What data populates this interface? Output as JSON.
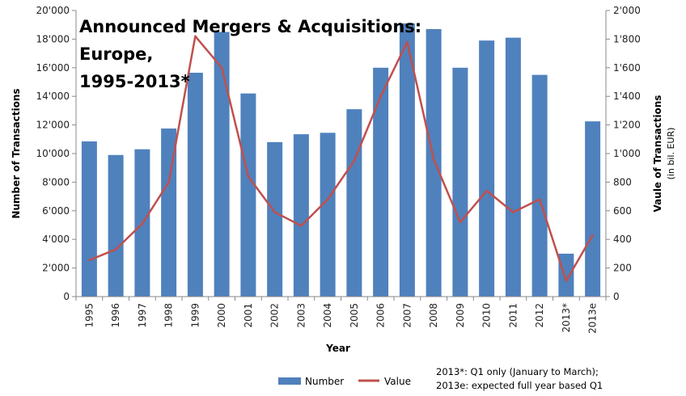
{
  "chart_data": {
    "type": "bar",
    "title_lines": [
      "Announced Mergers & Acquisitions:",
      "Europe,",
      "1995-2013*"
    ],
    "xlabel": "Year",
    "ylabel": "Number of Transactions",
    "y2label": "Vaule of Transactions",
    "y2label_sub": "(in bil. EUR)",
    "categories": [
      "1995",
      "1996",
      "1997",
      "1998",
      "1999",
      "2000",
      "2001",
      "2002",
      "2003",
      "2004",
      "2005",
      "2006",
      "2007",
      "2008",
      "2009",
      "2010",
      "2011",
      "2012",
      "2013*",
      "2013e"
    ],
    "ylim": [
      0,
      20000
    ],
    "y2lim": [
      0,
      2000
    ],
    "yticks": [
      "0",
      "2'000",
      "4'000",
      "6'000",
      "8'000",
      "10'000",
      "12'000",
      "14'000",
      "16'000",
      "18'000",
      "20'000"
    ],
    "y2ticks": [
      "0",
      "200",
      "400",
      "600",
      "800",
      "1'000",
      "1'200",
      "1'400",
      "1'600",
      "1'800",
      "2'000"
    ],
    "series": [
      {
        "name": "Number",
        "kind": "bar",
        "axis": "left",
        "color": "#4f81bd",
        "values": [
          10850,
          9900,
          10300,
          11750,
          15650,
          18500,
          14200,
          10800,
          11350,
          11450,
          13100,
          16000,
          19100,
          18700,
          16000,
          17900,
          18100,
          15500,
          3000,
          12250
        ]
      },
      {
        "name": "Value",
        "kind": "line",
        "axis": "right",
        "color": "#c0504d",
        "values": [
          255,
          330,
          510,
          800,
          1820,
          1600,
          840,
          590,
          495,
          680,
          950,
          1400,
          1780,
          960,
          520,
          740,
          590,
          680,
          110,
          430
        ]
      }
    ],
    "legend": [
      "Number",
      "Value"
    ],
    "legend_position": "bottom",
    "notes": [
      "2013*:  Q1 only (January to March);",
      "2013e:  expected full year based Q1"
    ],
    "grid": false
  }
}
